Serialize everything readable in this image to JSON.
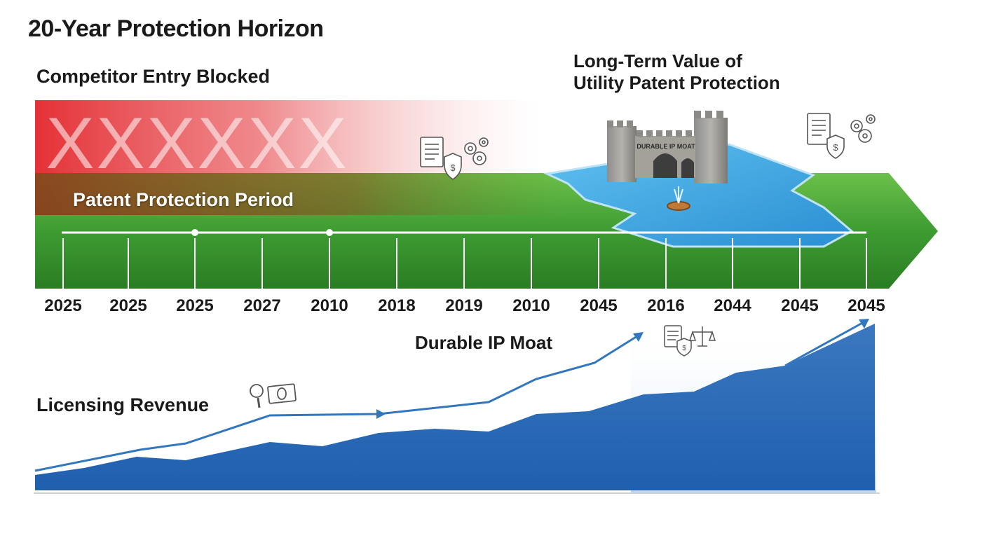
{
  "title": "20-Year Protection Horizon",
  "competitor_label": "Competitor Entry Blocked",
  "long_term_title": [
    "Long-Term Value of",
    "Utility Patent Protection"
  ],
  "protection_label": "Patent Protection Period",
  "moat_label": "Durable IP Moat",
  "castle_sign": "DURABLE IP MOAT",
  "licensing_label": "Licensing Revenue",
  "blocked_marks": [
    "X",
    "X",
    "X",
    "X",
    "X",
    "X"
  ],
  "timeline_years": [
    "2025",
    "2025",
    "2025",
    "2027",
    "2010",
    "2018",
    "2019",
    "2010",
    "2045",
    "2016",
    "2044",
    "2045",
    "2045"
  ],
  "colors": {
    "green": "#3f9e34",
    "red": "#e0363a",
    "water": "#3aa3e0",
    "revenue_blue": "#2e6fb5"
  },
  "icons": [
    "document-shield-coins-icon",
    "magnifier-money-icon",
    "document-dollar-scales-icon",
    "castle-moat-icon"
  ]
}
